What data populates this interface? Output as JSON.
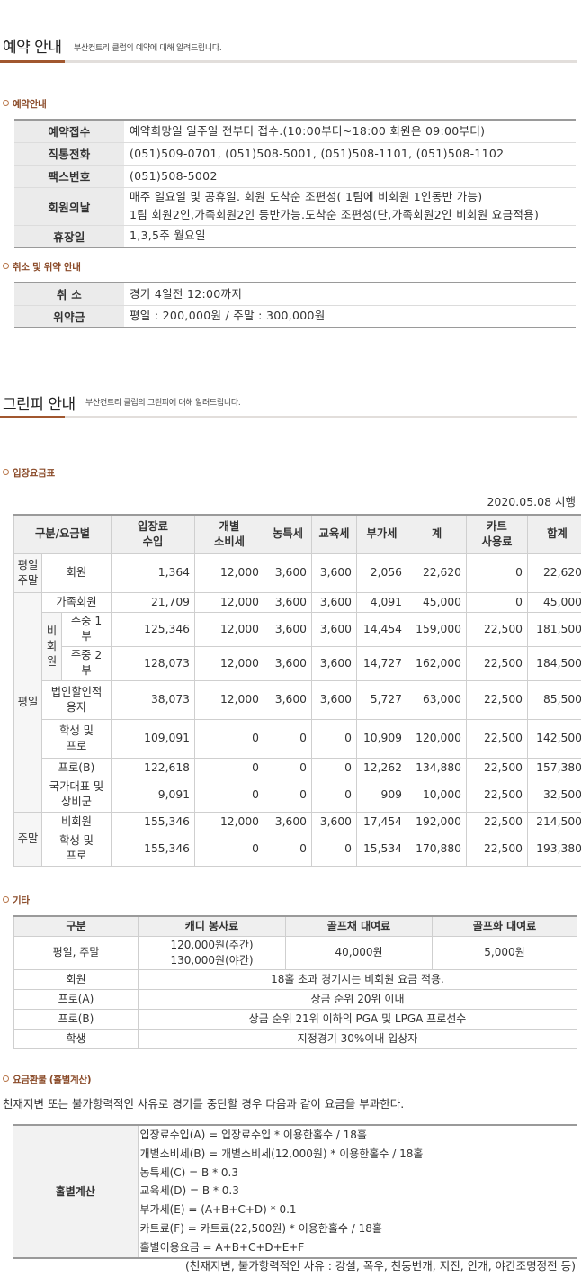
{
  "reservation": {
    "title": "예약 안내",
    "desc": "부산컨트리 클럽의 예약에 대해 알려드립니다.",
    "info_heading": "예약안내",
    "rows": [
      {
        "label": "예약접수",
        "lines": [
          "예약희망일 일주일 전부터 접수.(10:00부터~18:00 회원은 09:00부터)"
        ]
      },
      {
        "label": "직통전화",
        "lines": [
          "(051)509-0701, (051)508-5001, (051)508-1101, (051)508-1102"
        ]
      },
      {
        "label": "팩스번호",
        "lines": [
          "(051)508-5002"
        ]
      },
      {
        "label": "회원의날",
        "lines": [
          "매주 일요일 및 공휴일. 회원 도착순 조편성( 1팀에 비회원 1인동반 가능)",
          "1팀 회원2인,가족회원2인 동반가능.도착순 조편성(단,가족회원2인 비회원 요금적용)"
        ]
      },
      {
        "label": "휴장일",
        "lines": [
          "1,3,5주 월요일"
        ]
      }
    ],
    "cancel_heading": "취소 및 위약 안내",
    "cancel_rows": [
      {
        "label": "취 소",
        "value": "경기 4일전 12:00까지"
      },
      {
        "label": "위약금",
        "value": "평일 : 200,000원 / 주말 : 300,000원"
      }
    ]
  },
  "greenfee": {
    "title": "그린피 안내",
    "desc": "부산컨트리 클럽의 그린피에 대해 알려드립니다.",
    "fee_heading": "입장요금표",
    "effective_date": "2020.05.08 시행",
    "headers": [
      "구분/요금별",
      "입장료\n수입",
      "개별\n소비세",
      "농특세",
      "교육세",
      "부가세",
      "계",
      "카트\n사용료",
      "합계"
    ],
    "groups": {
      "weekday_weekend": "평일\n주말",
      "weekday": "평일",
      "weekend": "주말",
      "non_member": "비회\n원"
    },
    "rows": [
      {
        "label": "회원",
        "values": [
          "1,364",
          "12,000",
          "3,600",
          "3,600",
          "2,056",
          "22,620",
          "0",
          "22,620"
        ]
      },
      {
        "label": "가족회원",
        "values": [
          "21,709",
          "12,000",
          "3,600",
          "3,600",
          "4,091",
          "45,000",
          "0",
          "45,000"
        ]
      },
      {
        "label": "주중 1\n부",
        "values": [
          "125,346",
          "12,000",
          "3,600",
          "3,600",
          "14,454",
          "159,000",
          "22,500",
          "181,500"
        ]
      },
      {
        "label": "주중 2\n부",
        "values": [
          "128,073",
          "12,000",
          "3,600",
          "3,600",
          "14,727",
          "162,000",
          "22,500",
          "184,500"
        ]
      },
      {
        "label": "법인할인적\n용자",
        "values": [
          "38,073",
          "12,000",
          "3,600",
          "3,600",
          "5,727",
          "63,000",
          "22,500",
          "85,500"
        ]
      },
      {
        "label": "학생 및\n프로",
        "values": [
          "109,091",
          "0",
          "0",
          "0",
          "10,909",
          "120,000",
          "22,500",
          "142,500"
        ]
      },
      {
        "label": "프로(B)",
        "values": [
          "122,618",
          "0",
          "0",
          "0",
          "12,262",
          "134,880",
          "22,500",
          "157,380"
        ]
      },
      {
        "label": "국가대표 및\n상비군",
        "values": [
          "9,091",
          "0",
          "0",
          "0",
          "909",
          "10,000",
          "22,500",
          "32,500"
        ]
      },
      {
        "label": "비회원",
        "values": [
          "155,346",
          "12,000",
          "3,600",
          "3,600",
          "17,454",
          "192,000",
          "22,500",
          "214,500"
        ]
      },
      {
        "label": "학생 및\n프로",
        "values": [
          "155,346",
          "0",
          "0",
          "0",
          "15,534",
          "170,880",
          "22,500",
          "193,380"
        ]
      }
    ],
    "etc_heading": "기타",
    "etc_headers": [
      "구분",
      "캐디 봉사료",
      "골프채 대여료",
      "골프화 대여료"
    ],
    "etc_rows": [
      {
        "label": "평일, 주말",
        "caddie": "120,000원(주간)\n130,000원(야간)",
        "clubs": "40,000원",
        "shoes": "5,000원"
      },
      {
        "label": "회원",
        "note": "18홀 초과 경기시는 비회원 요금 적용."
      },
      {
        "label": "프로(A)",
        "note": "상금 순위 20위 이내"
      },
      {
        "label": "프로(B)",
        "note": "상금 순위 21위 이하의 PGA 및 LPGA 프로선수"
      },
      {
        "label": "학생",
        "note": "지정경기 30%이내 입상자"
      }
    ],
    "refund_heading": "요금환불 (홀별계산)",
    "refund_intro": "천재지변 또는 불가항력적인 사유로 경기를 중단할 경우 다음과 같이 요금을 부과한다.",
    "refund_label": "홀별계산",
    "refund_lines": [
      "입장료수입(A) = 입장료수입 * 이용한홀수 / 18홀",
      "개별소비세(B) = 개별소비세(12,000원) * 이용한홀수 / 18홀",
      "농특세(C) = B * 0.3",
      "교육세(D) = B * 0.3",
      "부가세(E) = (A+B+C+D) * 0.1",
      "카트료(F) = 카트료(22,500원) * 이용한홀수 / 18홀",
      "홀별이용요금 = A+B+C+D+E+F"
    ],
    "refund_note": "(천재지변, 불가항력적인 사유 : 강설, 폭우, 천둥번개, 지진, 안개, 야간조명정전 등)"
  }
}
